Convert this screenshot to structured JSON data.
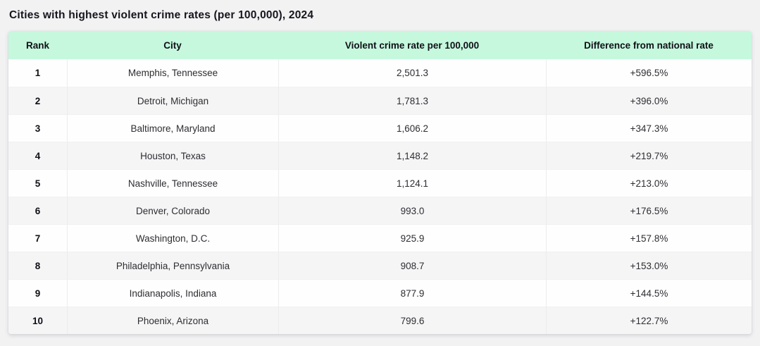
{
  "page": {
    "title": "Cities with highest violent crime rates (per 100,000), 2024"
  },
  "colors": {
    "header_bg": "#c5f8dd",
    "row_bg": "#fefefe",
    "row_alt_bg": "#f5f5f6",
    "page_bg": "#f2f2f3",
    "title_text": "#15151e"
  },
  "table": {
    "columns": [
      "Rank",
      "City",
      "Violent crime rate per 100,000",
      "Difference from national rate"
    ],
    "rows": [
      {
        "rank": "1",
        "city": "Memphis, Tennessee",
        "rate": "2,501.3",
        "diff": "+596.5%"
      },
      {
        "rank": "2",
        "city": "Detroit, Michigan",
        "rate": "1,781.3",
        "diff": "+396.0%"
      },
      {
        "rank": "3",
        "city": "Baltimore, Maryland",
        "rate": "1,606.2",
        "diff": "+347.3%"
      },
      {
        "rank": "4",
        "city": "Houston, Texas",
        "rate": "1,148.2",
        "diff": "+219.7%"
      },
      {
        "rank": "5",
        "city": "Nashville, Tennessee",
        "rate": "1,124.1",
        "diff": "+213.0%"
      },
      {
        "rank": "6",
        "city": "Denver, Colorado",
        "rate": "993.0",
        "diff": "+176.5%"
      },
      {
        "rank": "7",
        "city": "Washington, D.C.",
        "rate": "925.9",
        "diff": "+157.8%"
      },
      {
        "rank": "8",
        "city": "Philadelphia, Pennsylvania",
        "rate": "908.7",
        "diff": "+153.0%"
      },
      {
        "rank": "9",
        "city": "Indianapolis, Indiana",
        "rate": "877.9",
        "diff": "+144.5%"
      },
      {
        "rank": "10",
        "city": "Phoenix, Arizona",
        "rate": "799.6",
        "diff": "+122.7%"
      }
    ]
  },
  "chart_data": {
    "type": "table",
    "title": "Cities with highest violent crime rates (per 100,000), 2024",
    "columns": [
      "Rank",
      "City",
      "Violent crime rate per 100,000",
      "Difference from national rate"
    ],
    "rows": [
      [
        1,
        "Memphis, Tennessee",
        2501.3,
        "+596.5%"
      ],
      [
        2,
        "Detroit, Michigan",
        1781.3,
        "+396.0%"
      ],
      [
        3,
        "Baltimore, Maryland",
        1606.2,
        "+347.3%"
      ],
      [
        4,
        "Houston, Texas",
        1148.2,
        "+219.7%"
      ],
      [
        5,
        "Nashville, Tennessee",
        1124.1,
        "+213.0%"
      ],
      [
        6,
        "Denver, Colorado",
        993.0,
        "+176.5%"
      ],
      [
        7,
        "Washington, D.C.",
        925.9,
        "+157.8%"
      ],
      [
        8,
        "Philadelphia, Pennsylvania",
        908.7,
        "+153.0%"
      ],
      [
        9,
        "Indianapolis, Indiana",
        877.9,
        "+144.5%"
      ],
      [
        10,
        "Phoenix, Arizona",
        799.6,
        "+122.7%"
      ]
    ]
  }
}
